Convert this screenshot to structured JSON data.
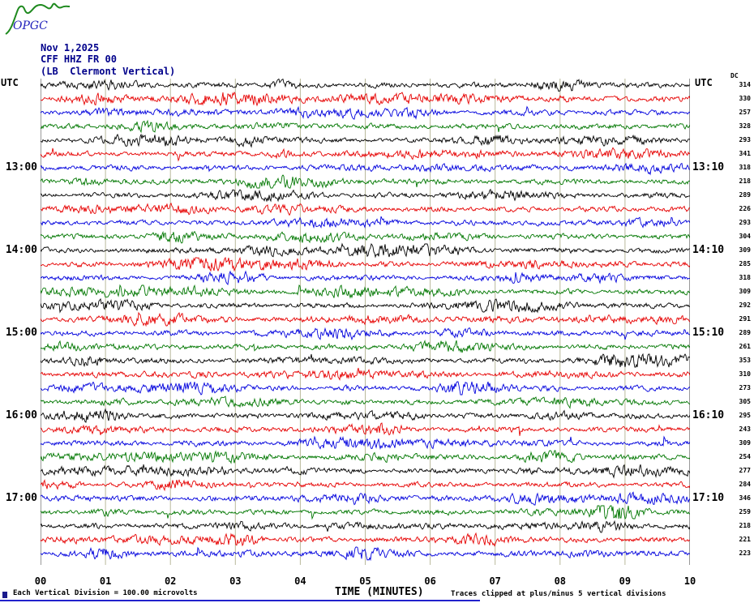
{
  "header": {
    "logo_text": "OPGC",
    "date": "Nov 1,2025",
    "station": "CFF HHZ FR 00",
    "location": "(LB  Clermont Vertical)"
  },
  "axes": {
    "utc_left": "UTC",
    "utc_right": "UTC",
    "dc_header": "DC",
    "x_ticks": [
      "00",
      "01",
      "02",
      "03",
      "04",
      "05",
      "06",
      "07",
      "08",
      "09",
      "10"
    ],
    "x_title": "TIME (MINUTES)"
  },
  "footer": {
    "scale_note": "Each Vertical Division =  100.00 microvolts",
    "clip_note": "Traces clipped at plus/minus 5 vertical divisions"
  },
  "chart_data": {
    "type": "line",
    "subtype": "helicorder-seismogram",
    "x_range_minutes": [
      0,
      10
    ],
    "minutes_per_trace": 10,
    "microvolts_per_division": 100,
    "clip_divisions": 5,
    "grid": "vertical minute lines",
    "colors": {
      "black": "#000000",
      "red": "#e60000",
      "blue": "#0000dd",
      "green": "#007700",
      "gridline": "#b9b99b",
      "plot_edge": "#333333"
    },
    "traces": [
      {
        "color": "black",
        "dc": 314,
        "utc_left": "",
        "utc_right": ""
      },
      {
        "color": "red",
        "dc": 330,
        "utc_left": "",
        "utc_right": ""
      },
      {
        "color": "blue",
        "dc": 257,
        "utc_left": "",
        "utc_right": ""
      },
      {
        "color": "green",
        "dc": 328,
        "utc_left": "",
        "utc_right": ""
      },
      {
        "color": "black",
        "dc": 293,
        "utc_left": "",
        "utc_right": ""
      },
      {
        "color": "red",
        "dc": 341,
        "utc_left": "",
        "utc_right": ""
      },
      {
        "color": "blue",
        "dc": 318,
        "utc_left": "13:00",
        "utc_right": "13:10"
      },
      {
        "color": "green",
        "dc": 218,
        "utc_left": "",
        "utc_right": ""
      },
      {
        "color": "black",
        "dc": 289,
        "utc_left": "",
        "utc_right": ""
      },
      {
        "color": "red",
        "dc": 226,
        "utc_left": "",
        "utc_right": ""
      },
      {
        "color": "blue",
        "dc": 293,
        "utc_left": "",
        "utc_right": ""
      },
      {
        "color": "green",
        "dc": 304,
        "utc_left": "",
        "utc_right": ""
      },
      {
        "color": "black",
        "dc": 309,
        "utc_left": "14:00",
        "utc_right": "14:10"
      },
      {
        "color": "red",
        "dc": 285,
        "utc_left": "",
        "utc_right": ""
      },
      {
        "color": "blue",
        "dc": 318,
        "utc_left": "",
        "utc_right": ""
      },
      {
        "color": "green",
        "dc": 309,
        "utc_left": "",
        "utc_right": ""
      },
      {
        "color": "black",
        "dc": 292,
        "utc_left": "",
        "utc_right": ""
      },
      {
        "color": "red",
        "dc": 291,
        "utc_left": "",
        "utc_right": ""
      },
      {
        "color": "blue",
        "dc": 289,
        "utc_left": "15:00",
        "utc_right": "15:10"
      },
      {
        "color": "green",
        "dc": 261,
        "utc_left": "",
        "utc_right": ""
      },
      {
        "color": "black",
        "dc": 353,
        "utc_left": "",
        "utc_right": ""
      },
      {
        "color": "red",
        "dc": 310,
        "utc_left": "",
        "utc_right": ""
      },
      {
        "color": "blue",
        "dc": 273,
        "utc_left": "",
        "utc_right": ""
      },
      {
        "color": "green",
        "dc": 305,
        "utc_left": "",
        "utc_right": ""
      },
      {
        "color": "black",
        "dc": 295,
        "utc_left": "16:00",
        "utc_right": "16:10"
      },
      {
        "color": "red",
        "dc": 243,
        "utc_left": "",
        "utc_right": ""
      },
      {
        "color": "blue",
        "dc": 309,
        "utc_left": "",
        "utc_right": ""
      },
      {
        "color": "green",
        "dc": 254,
        "utc_left": "",
        "utc_right": ""
      },
      {
        "color": "black",
        "dc": 277,
        "utc_left": "",
        "utc_right": ""
      },
      {
        "color": "red",
        "dc": 284,
        "utc_left": "",
        "utc_right": ""
      },
      {
        "color": "blue",
        "dc": 346,
        "utc_left": "17:00",
        "utc_right": "17:10"
      },
      {
        "color": "green",
        "dc": 259,
        "utc_left": "",
        "utc_right": ""
      },
      {
        "color": "black",
        "dc": 218,
        "utc_left": "",
        "utc_right": ""
      },
      {
        "color": "red",
        "dc": 221,
        "utc_left": "",
        "utc_right": ""
      },
      {
        "color": "blue",
        "dc": 223,
        "utc_left": "",
        "utc_right": ""
      }
    ]
  }
}
